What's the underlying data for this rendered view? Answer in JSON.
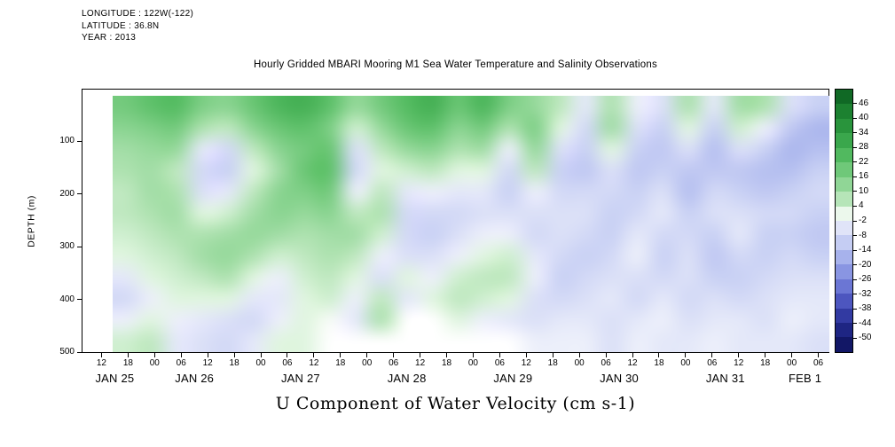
{
  "header": {
    "longitude": "LONGITUDE : 122W(-122)",
    "latitude": "LATITUDE : 36.8N",
    "year": "YEAR : 2013"
  },
  "chart_data": {
    "type": "heatmap",
    "title": "Hourly Gridded MBARI Mooring M1 Sea Water Temperature and Salinity Observations",
    "xlabel": "U Component of Water Velocity (cm s-1)",
    "ylabel": "DEPTH (m)",
    "x_axis": {
      "time_start_hour": 7.5,
      "time_end_hour": 176.5,
      "tick_hours": [
        12,
        18,
        24,
        30,
        36,
        42,
        48,
        54,
        60,
        66,
        72,
        78,
        84,
        90,
        96,
        102,
        108,
        114,
        120,
        126,
        132,
        138,
        144,
        150,
        156,
        162,
        168,
        174
      ],
      "tick_labels": [
        "12",
        "18",
        "00",
        "06",
        "12",
        "18",
        "00",
        "06",
        "12",
        "18",
        "00",
        "06",
        "12",
        "18",
        "00",
        "06",
        "12",
        "18",
        "00",
        "06",
        "12",
        "18",
        "00",
        "06",
        "12",
        "18",
        "00",
        "06"
      ],
      "date_ticks": [
        {
          "label": "JAN 25",
          "hour": 15
        },
        {
          "label": "JAN 26",
          "hour": 33
        },
        {
          "label": "JAN 27",
          "hour": 57
        },
        {
          "label": "JAN 28",
          "hour": 81
        },
        {
          "label": "JAN 29",
          "hour": 105
        },
        {
          "label": "JAN 30",
          "hour": 129
        },
        {
          "label": "JAN 31",
          "hour": 153
        },
        {
          "label": "FEB 1",
          "hour": 171
        }
      ]
    },
    "y_axis": {
      "min_depth": 0,
      "max_depth": 501,
      "ticks": [
        100,
        200,
        300,
        400,
        500
      ]
    },
    "grid": {
      "time_hours": [
        14,
        20,
        26,
        32,
        38,
        44,
        50,
        56,
        62,
        68,
        74,
        80,
        86,
        92,
        98,
        104,
        110,
        116,
        122,
        128,
        134,
        140,
        146,
        152,
        158,
        164,
        170,
        176
      ],
      "depths_m": [
        10,
        55,
        100,
        145,
        190,
        235,
        280,
        325,
        370,
        415,
        460,
        498
      ],
      "values_by_time": [
        [
          18,
          14,
          10,
          8,
          6,
          6,
          4,
          2,
          -4,
          -8,
          -2,
          4
        ],
        [
          22,
          16,
          12,
          10,
          10,
          8,
          6,
          4,
          2,
          -2,
          2,
          6
        ],
        [
          24,
          18,
          12,
          6,
          8,
          10,
          8,
          6,
          4,
          2,
          -2,
          -4
        ],
        [
          16,
          8,
          -4,
          -8,
          -6,
          2,
          8,
          10,
          6,
          2,
          -4,
          -6
        ],
        [
          14,
          6,
          -8,
          -10,
          -4,
          4,
          10,
          12,
          8,
          2,
          -6,
          -8
        ],
        [
          20,
          14,
          6,
          2,
          6,
          10,
          12,
          8,
          2,
          -4,
          -8,
          -4
        ],
        [
          26,
          20,
          14,
          10,
          14,
          14,
          10,
          4,
          -2,
          -4,
          -2,
          2
        ],
        [
          28,
          22,
          18,
          20,
          16,
          12,
          8,
          6,
          4,
          2,
          2,
          2
        ],
        [
          22,
          16,
          20,
          22,
          18,
          14,
          10,
          8,
          6,
          4,
          0,
          null
        ],
        [
          12,
          4,
          -6,
          -8,
          -2,
          6,
          10,
          6,
          2,
          -2,
          -4,
          null
        ],
        [
          18,
          12,
          6,
          2,
          6,
          8,
          4,
          -2,
          -6,
          6,
          8,
          null
        ],
        [
          24,
          20,
          12,
          4,
          -4,
          -8,
          -8,
          -6,
          2,
          -4,
          null,
          null
        ],
        [
          28,
          22,
          14,
          6,
          -2,
          -8,
          -10,
          -6,
          -2,
          2,
          null,
          null
        ],
        [
          20,
          14,
          8,
          2,
          -4,
          -8,
          -6,
          -2,
          4,
          6,
          2,
          null
        ],
        [
          26,
          18,
          10,
          2,
          -4,
          -6,
          -2,
          2,
          6,
          4,
          -2,
          null
        ],
        [
          16,
          8,
          -2,
          -8,
          -10,
          -6,
          -2,
          4,
          6,
          2,
          -4,
          null
        ],
        [
          12,
          16,
          12,
          6,
          -2,
          -6,
          -8,
          -4,
          -2,
          -6,
          -6,
          -2
        ],
        [
          6,
          2,
          -6,
          -10,
          -8,
          -6,
          -6,
          -8,
          -10,
          -8,
          -4,
          -2
        ],
        [
          -4,
          -8,
          -10,
          -12,
          -8,
          -6,
          -8,
          -10,
          -8,
          -6,
          -4,
          -2
        ],
        [
          8,
          10,
          2,
          -6,
          -8,
          -10,
          -10,
          -8,
          -6,
          -4,
          -6,
          -6
        ],
        [
          -2,
          -6,
          -10,
          -12,
          -10,
          -8,
          -4,
          -2,
          -6,
          -8,
          -4,
          -2
        ],
        [
          -6,
          -10,
          -12,
          -10,
          -6,
          -4,
          -8,
          -10,
          -8,
          -4,
          -2,
          -4
        ],
        [
          8,
          2,
          -6,
          -12,
          -14,
          -10,
          -8,
          -6,
          -6,
          -8,
          -6,
          -4
        ],
        [
          -4,
          -10,
          -14,
          -12,
          -8,
          -6,
          -10,
          -12,
          -10,
          -6,
          -4,
          -2
        ],
        [
          10,
          4,
          -6,
          -12,
          -10,
          -6,
          -4,
          -8,
          -10,
          -8,
          -4,
          -4
        ],
        [
          8,
          -2,
          -10,
          -14,
          -12,
          -8,
          -10,
          -10,
          -8,
          -6,
          -6,
          -4
        ],
        [
          -6,
          -12,
          -16,
          -14,
          -10,
          -8,
          -10,
          -8,
          -6,
          -4,
          -2,
          -4
        ],
        [
          -10,
          -16,
          -14,
          -10,
          -8,
          -10,
          -12,
          -10,
          -6,
          -4,
          -4,
          -6
        ]
      ]
    },
    "colorbar": {
      "range": [
        -56,
        52
      ],
      "band_step": 6,
      "tick_values": [
        46,
        40,
        34,
        28,
        22,
        16,
        10,
        4,
        -2,
        -8,
        -14,
        -20,
        -26,
        -32,
        -38,
        -44,
        -50
      ],
      "stops": [
        {
          "v": 52,
          "color": "#0a5c20"
        },
        {
          "v": 44,
          "color": "#1a7e2e"
        },
        {
          "v": 34,
          "color": "#2f9e42"
        },
        {
          "v": 24,
          "color": "#55bc62"
        },
        {
          "v": 16,
          "color": "#7ecf86"
        },
        {
          "v": 8,
          "color": "#aee2b0"
        },
        {
          "v": 2,
          "color": "#e0f5e0"
        },
        {
          "v": 0,
          "color": "#f7fbf7"
        },
        {
          "v": -2,
          "color": "#eceffa"
        },
        {
          "v": -8,
          "color": "#d3d9f6"
        },
        {
          "v": -14,
          "color": "#b6c0f0"
        },
        {
          "v": -20,
          "color": "#98a4e8"
        },
        {
          "v": -26,
          "color": "#7a86dc"
        },
        {
          "v": -32,
          "color": "#5c66cc"
        },
        {
          "v": -38,
          "color": "#3e46b2"
        },
        {
          "v": -44,
          "color": "#262e92"
        },
        {
          "v": -50,
          "color": "#161c74"
        },
        {
          "v": -56,
          "color": "#0d1158"
        }
      ]
    }
  }
}
